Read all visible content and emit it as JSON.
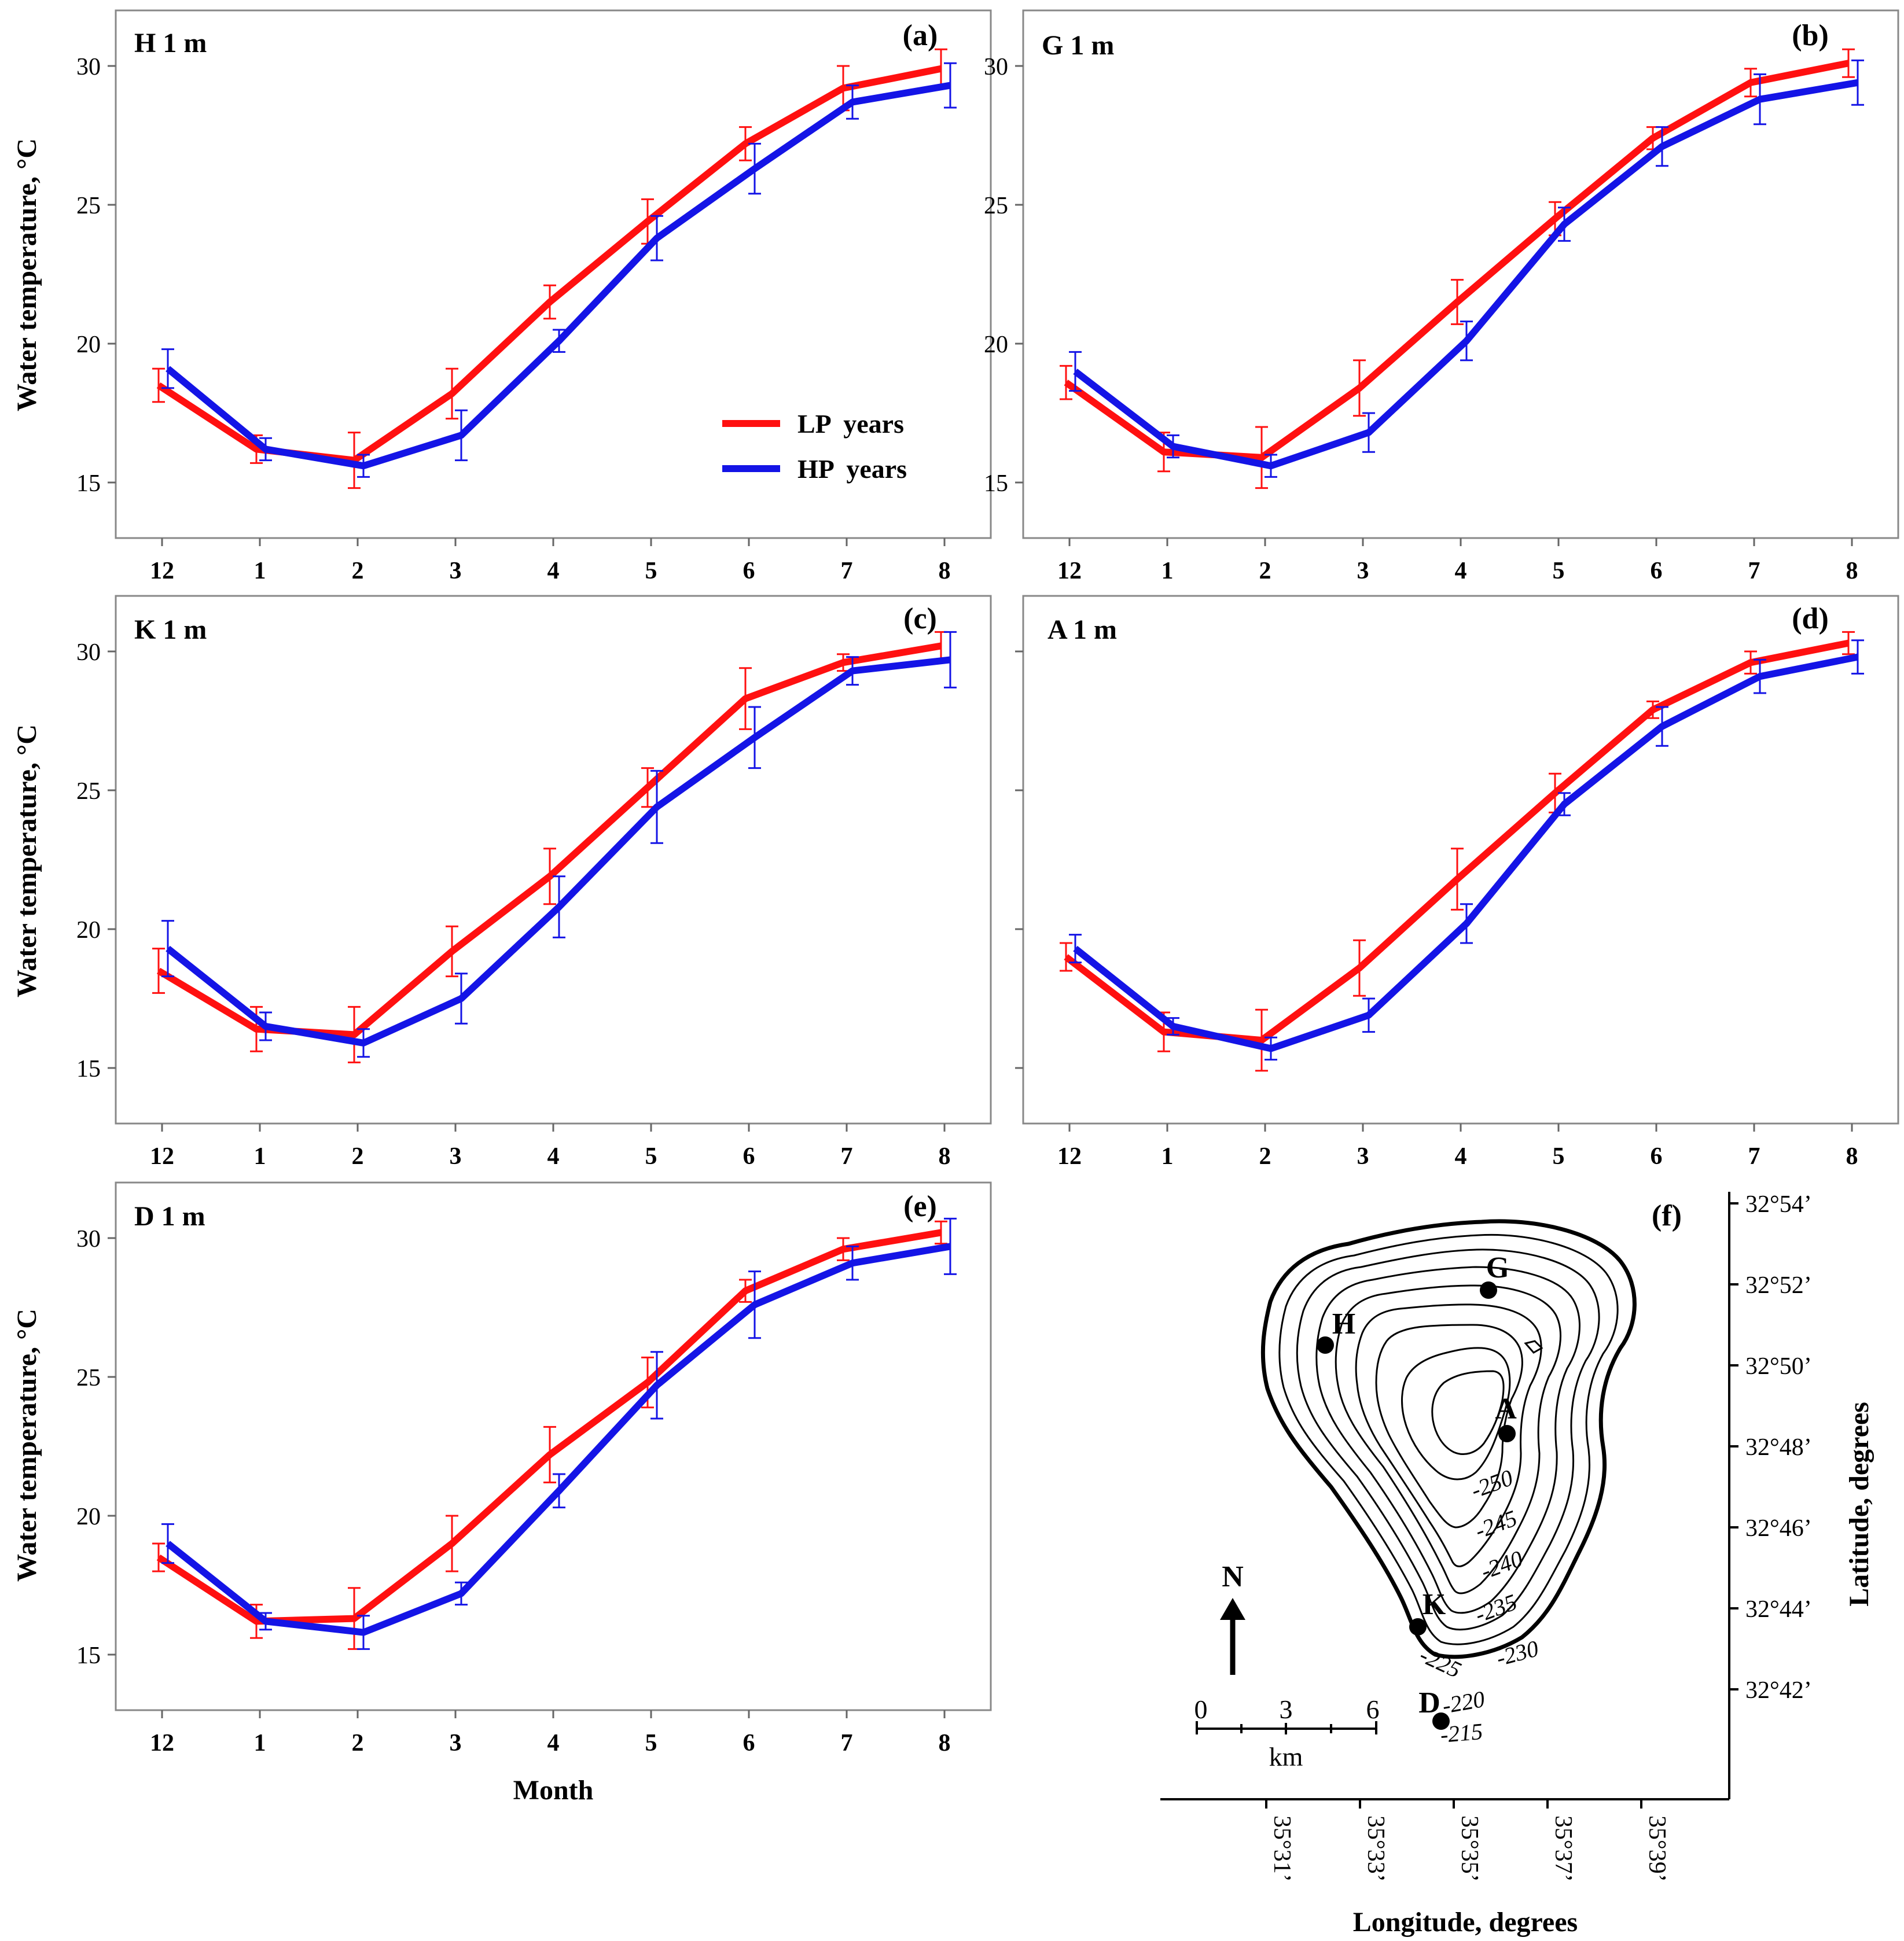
{
  "figure": {
    "ylabel": "Water temperature, °C",
    "xlabel": "Month",
    "map_x_label": "Longitude, degrees",
    "map_y_label": "Latitude, degrees"
  },
  "colors": {
    "lp": "#ff1010",
    "hp": "#1414e6",
    "axis": "#888888",
    "text": "#000000"
  },
  "legend": {
    "lp": "LP  years",
    "hp": "HP  years"
  },
  "chart_data": [
    {
      "type": "line",
      "id": "a",
      "label": "(a)",
      "title": "H  1 m",
      "categories": [
        "12",
        "1",
        "2",
        "3",
        "4",
        "5",
        "6",
        "7",
        "8"
      ],
      "yticks": [
        "15",
        "20",
        "25",
        "30"
      ],
      "ylim": [
        13,
        32
      ],
      "xlabel": "",
      "ylabel": "Water temperature, °C",
      "legend": "center-right",
      "series": [
        {
          "name": "LP  years",
          "values": [
            18.5,
            16.2,
            15.8,
            18.2,
            21.5,
            24.4,
            27.2,
            29.2,
            29.9
          ],
          "errors": [
            0.6,
            0.5,
            1.0,
            0.9,
            0.6,
            0.8,
            0.6,
            0.8,
            0.7
          ]
        },
        {
          "name": "HP  years",
          "values": [
            19.1,
            16.2,
            15.6,
            16.7,
            20.1,
            23.8,
            26.3,
            28.7,
            29.3
          ],
          "errors": [
            0.7,
            0.4,
            0.4,
            0.9,
            0.4,
            0.8,
            0.9,
            0.6,
            0.8
          ]
        }
      ]
    },
    {
      "type": "line",
      "id": "b",
      "label": "(b)",
      "title": "G  1 m",
      "categories": [
        "12",
        "1",
        "2",
        "3",
        "4",
        "5",
        "6",
        "7",
        "8"
      ],
      "yticks": [
        "15",
        "20",
        "25",
        "30"
      ],
      "ylim": [
        13,
        32
      ],
      "xlabel": "",
      "ylabel": "",
      "series": [
        {
          "name": "LP  years",
          "values": [
            18.6,
            16.1,
            15.9,
            18.4,
            21.5,
            24.5,
            27.4,
            29.4,
            30.1
          ],
          "errors": [
            0.6,
            0.7,
            1.1,
            1.0,
            0.8,
            0.6,
            0.4,
            0.5,
            0.5
          ]
        },
        {
          "name": "HP  years",
          "values": [
            19.0,
            16.3,
            15.6,
            16.8,
            20.1,
            24.3,
            27.1,
            28.8,
            29.4
          ],
          "errors": [
            0.7,
            0.4,
            0.4,
            0.7,
            0.7,
            0.6,
            0.7,
            0.9,
            0.8
          ]
        }
      ]
    },
    {
      "type": "line",
      "id": "c",
      "label": "(c)",
      "title": "K  1 m",
      "categories": [
        "12",
        "1",
        "2",
        "3",
        "4",
        "5",
        "6",
        "7",
        "8"
      ],
      "yticks": [
        "15",
        "20",
        "25",
        "30"
      ],
      "ylim": [
        13,
        32
      ],
      "xlabel": "",
      "ylabel": "Water temperature, °C",
      "series": [
        {
          "name": "LP  years",
          "values": [
            18.5,
            16.4,
            16.2,
            19.2,
            21.9,
            25.1,
            28.3,
            29.6,
            30.2
          ],
          "errors": [
            0.8,
            0.8,
            1.0,
            0.9,
            1.0,
            0.7,
            1.1,
            0.3,
            0.5
          ]
        },
        {
          "name": "HP  years",
          "values": [
            19.3,
            16.5,
            15.9,
            17.5,
            20.8,
            24.4,
            26.9,
            29.3,
            29.7
          ],
          "errors": [
            1.0,
            0.5,
            0.5,
            0.9,
            1.1,
            1.3,
            1.1,
            0.5,
            1.0
          ]
        }
      ]
    },
    {
      "type": "line",
      "id": "d",
      "label": "(d)",
      "title": "A  1 m",
      "categories": [
        "12",
        "1",
        "2",
        "3",
        "4",
        "5",
        "6",
        "7",
        "8"
      ],
      "yticks": [],
      "ylim": [
        13,
        32
      ],
      "xlabel": "",
      "ylabel": "",
      "series": [
        {
          "name": "LP  years",
          "values": [
            19.0,
            16.3,
            16.0,
            18.6,
            21.8,
            24.9,
            27.9,
            29.6,
            30.3
          ],
          "errors": [
            0.5,
            0.7,
            1.1,
            1.0,
            1.1,
            0.7,
            0.3,
            0.4,
            0.4
          ]
        },
        {
          "name": "HP  years",
          "values": [
            19.3,
            16.5,
            15.7,
            16.9,
            20.2,
            24.5,
            27.3,
            29.1,
            29.8
          ],
          "errors": [
            0.5,
            0.3,
            0.4,
            0.6,
            0.7,
            0.4,
            0.7,
            0.6,
            0.6
          ]
        }
      ]
    },
    {
      "type": "line",
      "id": "e",
      "label": "(e)",
      "title": "D  1 m",
      "categories": [
        "12",
        "1",
        "2",
        "3",
        "4",
        "5",
        "6",
        "7",
        "8"
      ],
      "yticks": [
        "15",
        "20",
        "25",
        "30"
      ],
      "ylim": [
        13,
        32
      ],
      "xlabel": "Month",
      "ylabel": "Water temperature, °C",
      "series": [
        {
          "name": "LP  years",
          "values": [
            18.5,
            16.2,
            16.3,
            19.0,
            22.2,
            24.8,
            28.1,
            29.6,
            30.2
          ],
          "errors": [
            0.5,
            0.6,
            1.1,
            1.0,
            1.0,
            0.9,
            0.4,
            0.4,
            0.4
          ]
        },
        {
          "name": "HP  years",
          "values": [
            19.0,
            16.2,
            15.8,
            17.2,
            20.9,
            24.7,
            27.6,
            29.1,
            29.7
          ],
          "errors": [
            0.7,
            0.3,
            0.6,
            0.4,
            0.6,
            1.2,
            1.2,
            0.6,
            1.0
          ]
        }
      ]
    }
  ],
  "map": {
    "label": "(f)",
    "stations": [
      "G",
      "H",
      "A",
      "K",
      "D"
    ],
    "contours": [
      "-250",
      "-245",
      "-240",
      "-235",
      "-230",
      "-225",
      "-220",
      "-215"
    ],
    "lat_ticks": [
      "32°54’",
      "32°52’",
      "32°50’",
      "32°48’",
      "32°46’",
      "32°44’",
      "32°42’"
    ],
    "lon_ticks": [
      "35°31’",
      "35°33’",
      "35°35’",
      "35°37’",
      "35°39’"
    ],
    "north": "N",
    "scale_ticks": [
      "0",
      "3",
      "6"
    ],
    "scale_unit": "km"
  }
}
